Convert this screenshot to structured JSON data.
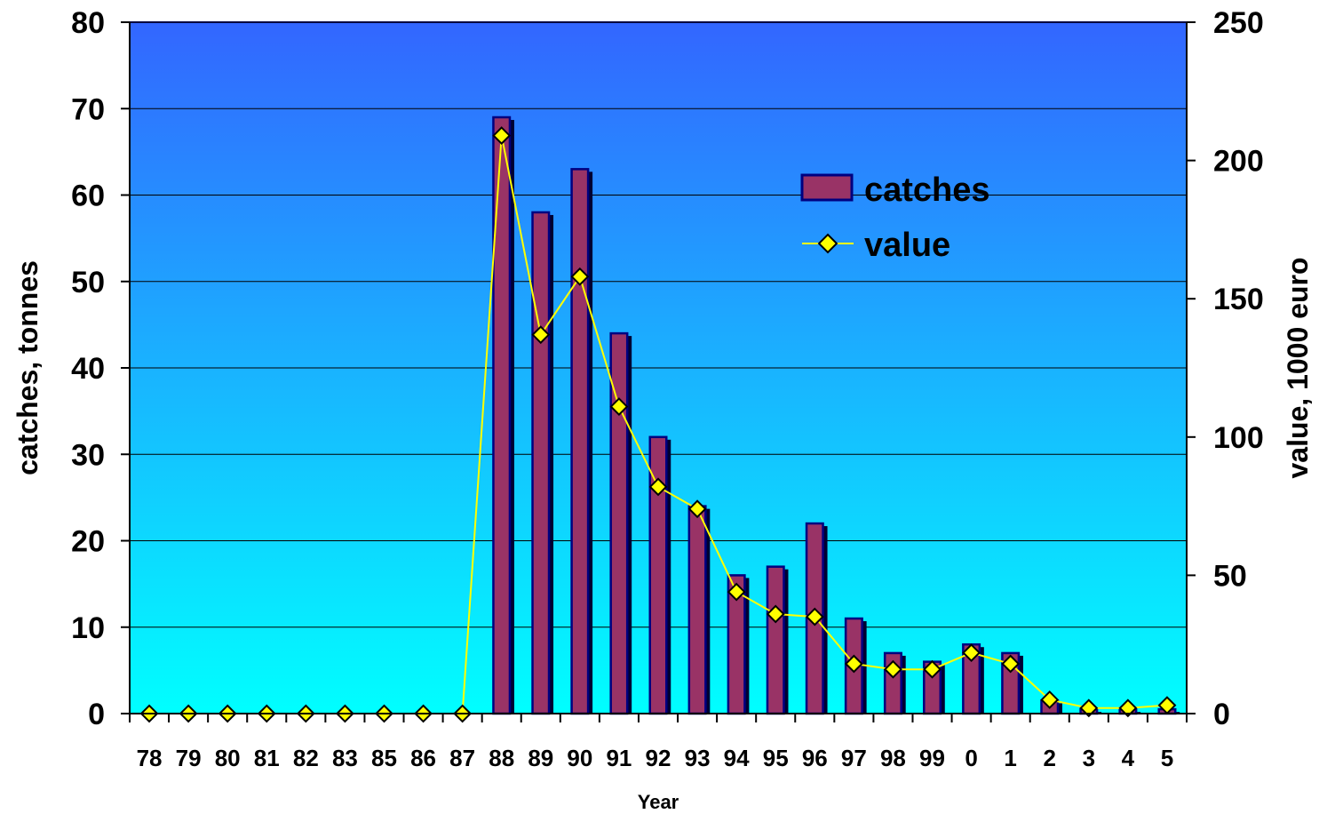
{
  "chart_data": {
    "type": "bar",
    "categories": [
      "78",
      "79",
      "80",
      "81",
      "82",
      "83",
      "85",
      "86",
      "87",
      "88",
      "89",
      "90",
      "91",
      "92",
      "93",
      "94",
      "95",
      "96",
      "97",
      "98",
      "99",
      "0",
      "1",
      "2",
      "3",
      "4",
      "5"
    ],
    "series": [
      {
        "name": "catches",
        "type": "bar",
        "axis": "left",
        "values": [
          0,
          0,
          0,
          0,
          0,
          0,
          0,
          0,
          0,
          69,
          58,
          63,
          44,
          32,
          24,
          16,
          17,
          22,
          11,
          7,
          6,
          8,
          7,
          1.5,
          0.5,
          0.5,
          0.5
        ]
      },
      {
        "name": "value",
        "type": "line",
        "axis": "right",
        "values": [
          0,
          0,
          0,
          0,
          0,
          0,
          0,
          0,
          0,
          209,
          137,
          158,
          111,
          82,
          74,
          44,
          36,
          35,
          18,
          16,
          16,
          22,
          18,
          5,
          2,
          2,
          3
        ]
      }
    ],
    "xlabel": "Year",
    "ylabel_left": "catches, tonnes",
    "ylabel_right": "value, 1000 euro",
    "ylim_left": [
      0,
      80
    ],
    "ylim_right": [
      0,
      250
    ],
    "yticks_left": [
      "0",
      "10",
      "20",
      "30",
      "40",
      "50",
      "60",
      "70",
      "80"
    ],
    "yticks_right": [
      "0",
      "50",
      "100",
      "150",
      "200",
      "250"
    ],
    "grid": true,
    "legend_position": "top-right",
    "colors": {
      "bar_fill": "#993366",
      "bar_edge": "#000080",
      "bar_shadow": "#000033",
      "line": "#ffff00",
      "marker": "#ffff00",
      "marker_edge": "#000000",
      "plot_bg_top": "#3366ff",
      "plot_bg_bottom": "#00ffff"
    }
  }
}
